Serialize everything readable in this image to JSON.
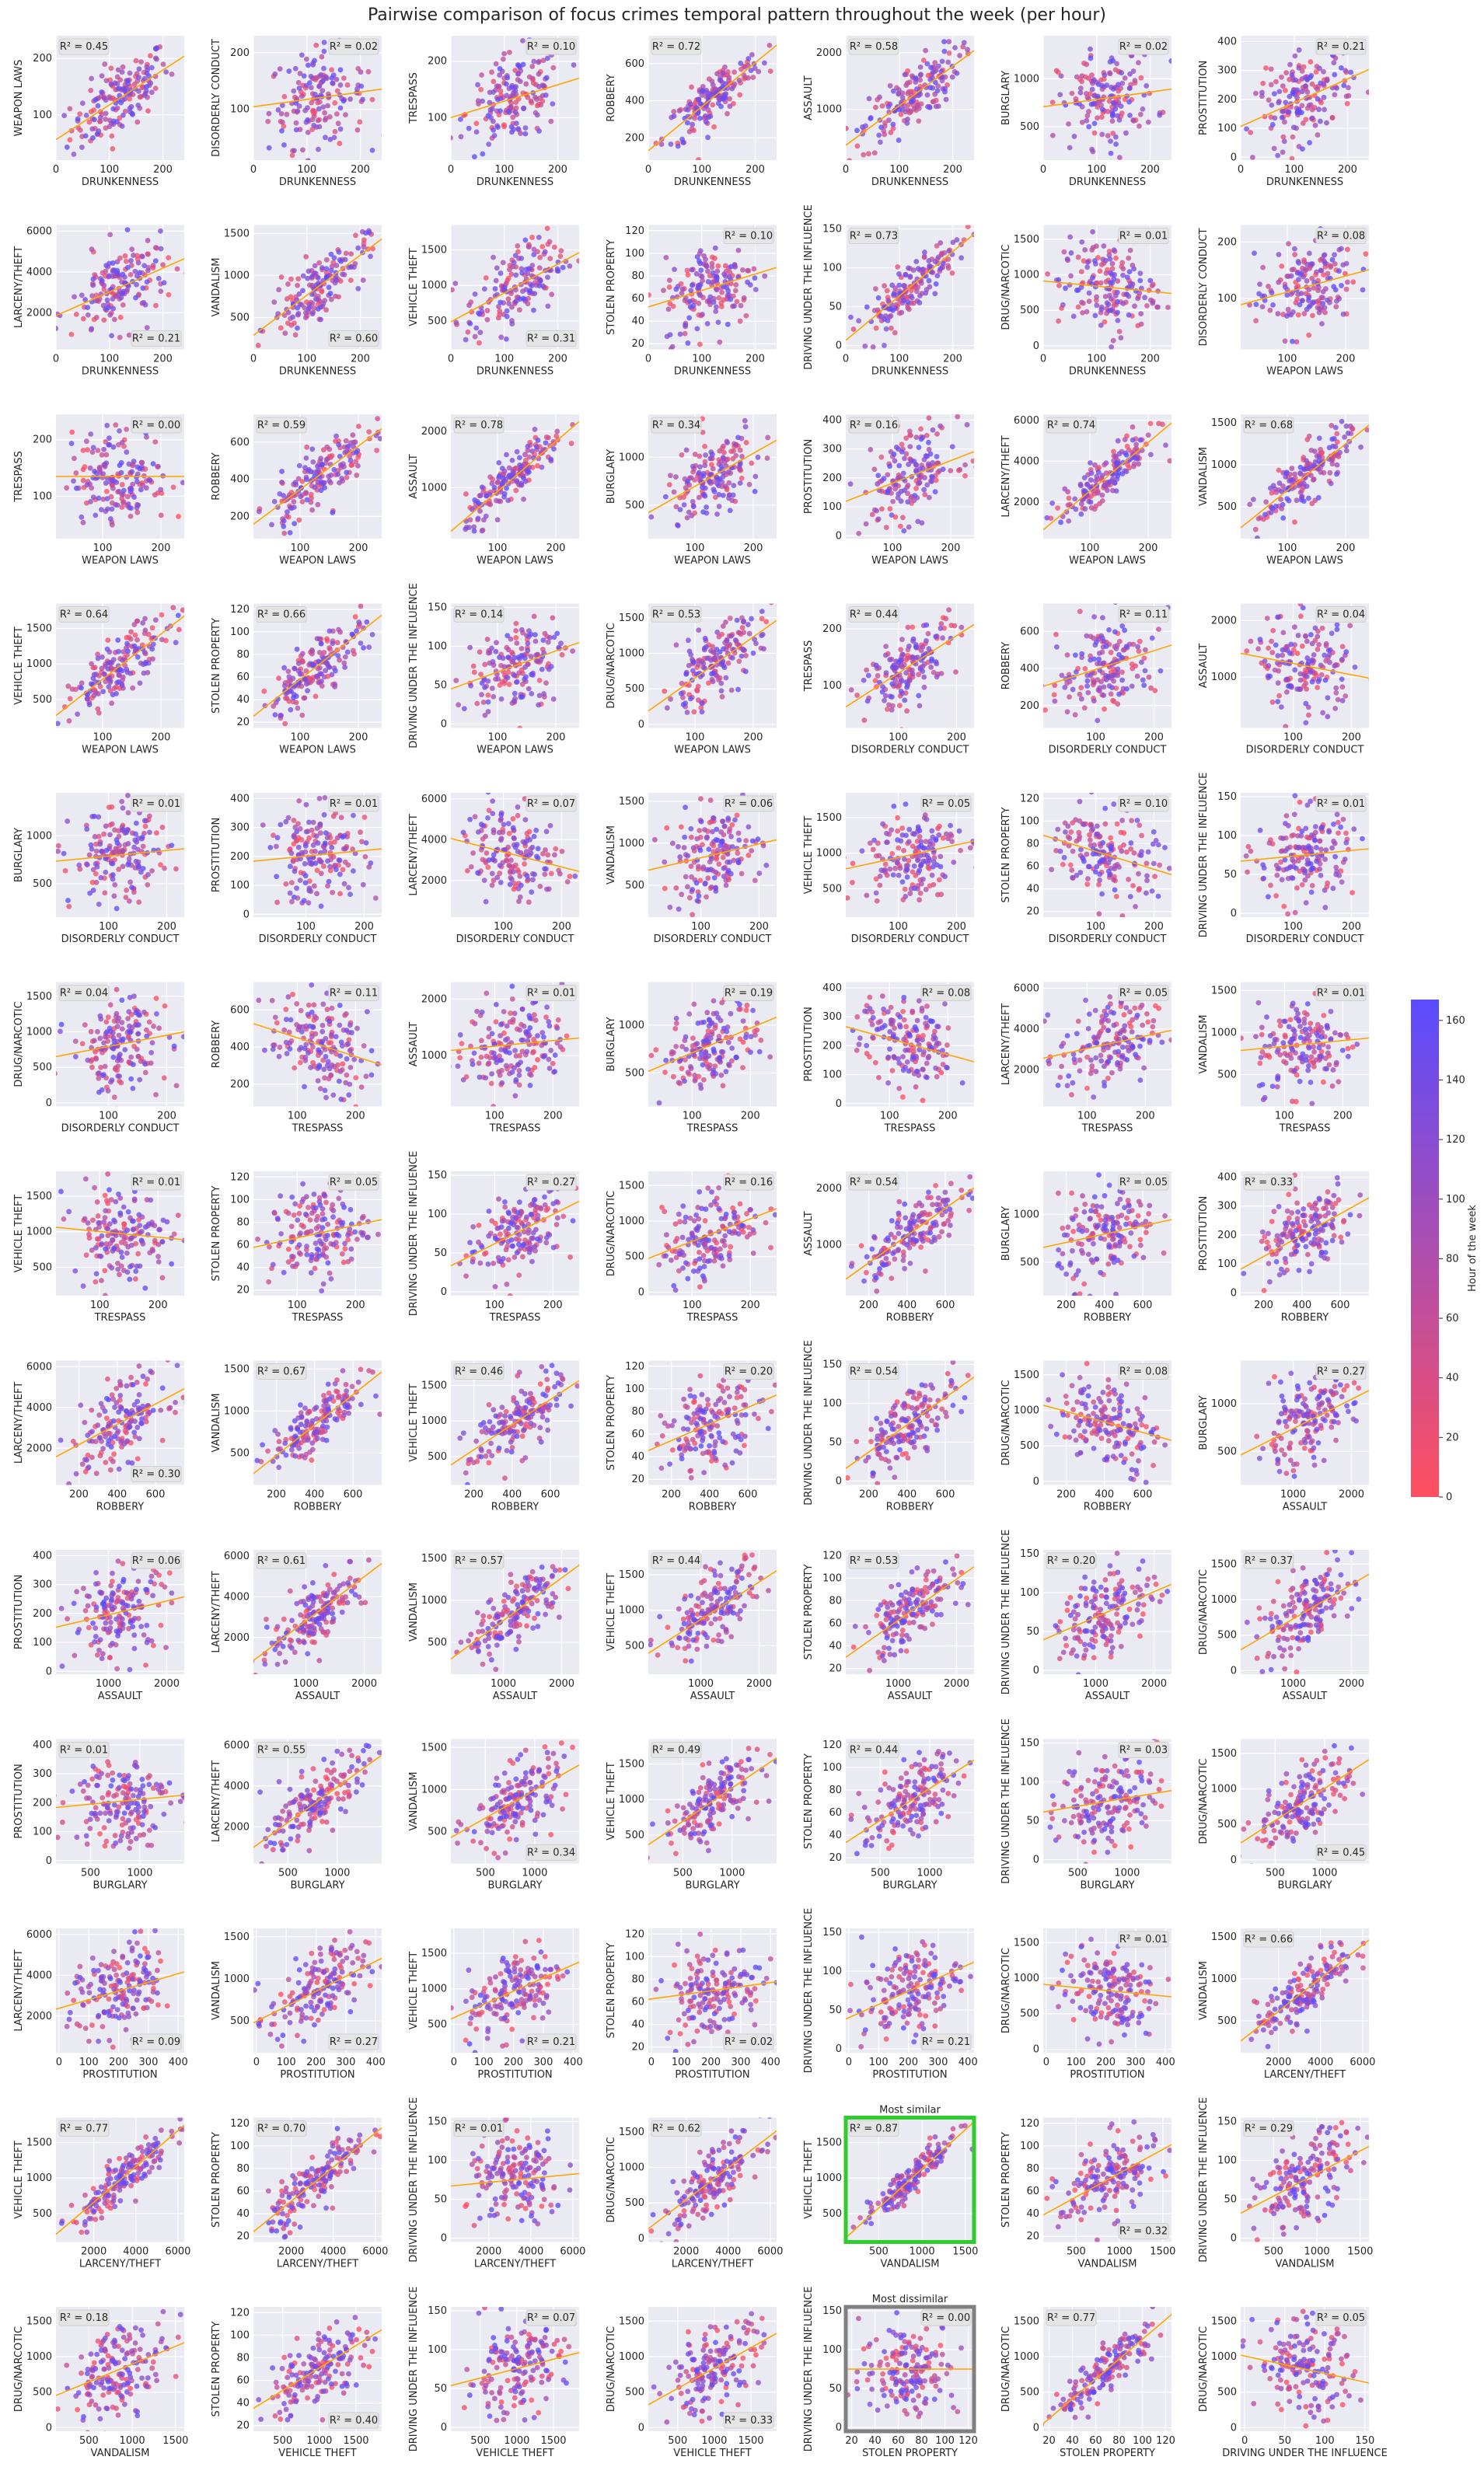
{
  "title": "Pairwise comparison of focus crimes temporal pattern throughout the week (per hour)",
  "colorbar": {
    "label": "Hour of the week",
    "ticks": [
      0,
      20,
      40,
      60,
      80,
      100,
      120,
      140,
      160
    ],
    "min": 0,
    "max": 167,
    "color_low": "#ff4f5f",
    "color_high": "#5a4cff"
  },
  "colors": {
    "panel_bg": "#eaeaf2",
    "grid": "#ffffff",
    "fit_line": "#ffa500",
    "most_similar_frame": "#2ecc2e",
    "most_dissimilar_frame": "#808080",
    "r2_box": "#e5e5e5"
  },
  "variables": {
    "DRUNKENNESS": {
      "lim": [
        0,
        240
      ],
      "ticks": [
        0,
        100,
        200
      ]
    },
    "WEAPON LAWS": {
      "lim": [
        20,
        240
      ],
      "ticks": [
        100,
        200
      ]
    },
    "DISORDERLY CONDUCT": {
      "lim": [
        10,
        230
      ],
      "ticks": [
        100,
        200
      ]
    },
    "TRESPASS": {
      "lim": [
        25,
        245
      ],
      "ticks": [
        100,
        200
      ]
    },
    "ROBBERY": {
      "lim": [
        80,
        750
      ],
      "ticks": [
        200,
        400,
        600
      ]
    },
    "ASSAULT": {
      "lim": [
        100,
        2300
      ],
      "ticks": [
        1000,
        2000
      ]
    },
    "BURGLARY": {
      "lim": [
        150,
        1450
      ],
      "ticks": [
        500,
        1000
      ]
    },
    "PROSTITUTION": {
      "lim": [
        -10,
        420
      ],
      "ticks": [
        0,
        100,
        200,
        300,
        400
      ]
    },
    "LARCENY/THEFT": {
      "lim": [
        200,
        6300
      ],
      "ticks": [
        2000,
        4000,
        6000
      ]
    },
    "VANDALISM": {
      "lim": [
        120,
        1600
      ],
      "ticks": [
        500,
        1000,
        1500
      ]
    },
    "VEHICLE THEFT": {
      "lim": [
        100,
        1850
      ],
      "ticks": [
        500,
        1000,
        1500
      ]
    },
    "STOLEN PROPERTY": {
      "lim": [
        15,
        125
      ],
      "ticks": [
        20,
        40,
        60,
        80,
        100,
        120
      ]
    },
    "DRIVING UNDER THE INFLUENCE": {
      "lim": [
        -5,
        155
      ],
      "ticks": [
        0,
        50,
        100,
        150
      ]
    },
    "DRUG/NARCOTIC": {
      "lim": [
        -50,
        1700
      ],
      "ticks": [
        0,
        500,
        1000,
        1500
      ]
    }
  },
  "panels": [
    {
      "x": "DRUNKENNESS",
      "y": "WEAPON LAWS",
      "r2": "R² = 0.45",
      "r2_pos": "top-left"
    },
    {
      "x": "DRUNKENNESS",
      "y": "DISORDERLY CONDUCT",
      "r2": "R² = 0.02",
      "r2_pos": "top-right"
    },
    {
      "x": "DRUNKENNESS",
      "y": "TRESPASS",
      "r2": "R² = 0.10",
      "r2_pos": "top-right"
    },
    {
      "x": "DRUNKENNESS",
      "y": "ROBBERY",
      "r2": "R² = 0.72",
      "r2_pos": "top-left"
    },
    {
      "x": "DRUNKENNESS",
      "y": "ASSAULT",
      "r2": "R² = 0.58",
      "r2_pos": "top-left"
    },
    {
      "x": "DRUNKENNESS",
      "y": "BURGLARY",
      "r2": "R² = 0.02",
      "r2_pos": "top-right"
    },
    {
      "x": "DRUNKENNESS",
      "y": "PROSTITUTION",
      "r2": "R² = 0.21",
      "r2_pos": "top-right"
    },
    {
      "x": "DRUNKENNESS",
      "y": "LARCENY/THEFT",
      "r2": "R² = 0.21",
      "r2_pos": "bottom-right"
    },
    {
      "x": "DRUNKENNESS",
      "y": "VANDALISM",
      "r2": "R² = 0.60",
      "r2_pos": "bottom-right"
    },
    {
      "x": "DRUNKENNESS",
      "y": "VEHICLE THEFT",
      "r2": "R² = 0.31",
      "r2_pos": "bottom-right"
    },
    {
      "x": "DRUNKENNESS",
      "y": "STOLEN PROPERTY",
      "r2": "R² = 0.10",
      "r2_pos": "top-right"
    },
    {
      "x": "DRUNKENNESS",
      "y": "DRIVING UNDER THE INFLUENCE",
      "r2": "R² = 0.73",
      "r2_pos": "top-left"
    },
    {
      "x": "DRUNKENNESS",
      "y": "DRUG/NARCOTIC",
      "r2": "R² = 0.01",
      "r2_pos": "top-right"
    },
    {
      "x": "WEAPON LAWS",
      "y": "DISORDERLY CONDUCT",
      "r2": "R² = 0.08",
      "r2_pos": "top-right"
    },
    {
      "x": "WEAPON LAWS",
      "y": "TRESPASS",
      "r2": "R² = 0.00",
      "r2_pos": "top-right"
    },
    {
      "x": "WEAPON LAWS",
      "y": "ROBBERY",
      "r2": "R² = 0.59",
      "r2_pos": "top-left"
    },
    {
      "x": "WEAPON LAWS",
      "y": "ASSAULT",
      "r2": "R² = 0.78",
      "r2_pos": "top-left"
    },
    {
      "x": "WEAPON LAWS",
      "y": "BURGLARY",
      "r2": "R² = 0.34",
      "r2_pos": "top-left"
    },
    {
      "x": "WEAPON LAWS",
      "y": "PROSTITUTION",
      "r2": "R² = 0.16",
      "r2_pos": "top-left"
    },
    {
      "x": "WEAPON LAWS",
      "y": "LARCENY/THEFT",
      "r2": "R² = 0.74",
      "r2_pos": "top-left"
    },
    {
      "x": "WEAPON LAWS",
      "y": "VANDALISM",
      "r2": "R² = 0.68",
      "r2_pos": "top-left"
    },
    {
      "x": "WEAPON LAWS",
      "y": "VEHICLE THEFT",
      "r2": "R² = 0.64",
      "r2_pos": "top-left"
    },
    {
      "x": "WEAPON LAWS",
      "y": "STOLEN PROPERTY",
      "r2": "R² = 0.66",
      "r2_pos": "top-left"
    },
    {
      "x": "WEAPON LAWS",
      "y": "DRIVING UNDER THE INFLUENCE",
      "r2": "R² = 0.14",
      "r2_pos": "top-left"
    },
    {
      "x": "WEAPON LAWS",
      "y": "DRUG/NARCOTIC",
      "r2": "R² = 0.53",
      "r2_pos": "top-left"
    },
    {
      "x": "DISORDERLY CONDUCT",
      "y": "TRESPASS",
      "r2": "R² = 0.44",
      "r2_pos": "top-left"
    },
    {
      "x": "DISORDERLY CONDUCT",
      "y": "ROBBERY",
      "r2": "R² = 0.11",
      "r2_pos": "top-right"
    },
    {
      "x": "DISORDERLY CONDUCT",
      "y": "ASSAULT",
      "r2": "R² = 0.04",
      "r2_pos": "top-right"
    },
    {
      "x": "DISORDERLY CONDUCT",
      "y": "BURGLARY",
      "r2": "R² = 0.01",
      "r2_pos": "top-right"
    },
    {
      "x": "DISORDERLY CONDUCT",
      "y": "PROSTITUTION",
      "r2": "R² = 0.01",
      "r2_pos": "top-right"
    },
    {
      "x": "DISORDERLY CONDUCT",
      "y": "LARCENY/THEFT",
      "r2": "R² = 0.07",
      "r2_pos": "top-right"
    },
    {
      "x": "DISORDERLY CONDUCT",
      "y": "VANDALISM",
      "r2": "R² = 0.06",
      "r2_pos": "top-right"
    },
    {
      "x": "DISORDERLY CONDUCT",
      "y": "VEHICLE THEFT",
      "r2": "R² = 0.05",
      "r2_pos": "top-right"
    },
    {
      "x": "DISORDERLY CONDUCT",
      "y": "STOLEN PROPERTY",
      "r2": "R² = 0.10",
      "r2_pos": "top-right"
    },
    {
      "x": "DISORDERLY CONDUCT",
      "y": "DRIVING UNDER THE INFLUENCE",
      "r2": "R² = 0.01",
      "r2_pos": "top-right"
    },
    {
      "x": "DISORDERLY CONDUCT",
      "y": "DRUG/NARCOTIC",
      "r2": "R² = 0.04",
      "r2_pos": "top-left"
    },
    {
      "x": "TRESPASS",
      "y": "ROBBERY",
      "r2": "R² = 0.11",
      "r2_pos": "top-right"
    },
    {
      "x": "TRESPASS",
      "y": "ASSAULT",
      "r2": "R² = 0.01",
      "r2_pos": "top-right"
    },
    {
      "x": "TRESPASS",
      "y": "BURGLARY",
      "r2": "R² = 0.19",
      "r2_pos": "top-right"
    },
    {
      "x": "TRESPASS",
      "y": "PROSTITUTION",
      "r2": "R² = 0.08",
      "r2_pos": "top-right"
    },
    {
      "x": "TRESPASS",
      "y": "LARCENY/THEFT",
      "r2": "R² = 0.05",
      "r2_pos": "top-right"
    },
    {
      "x": "TRESPASS",
      "y": "VANDALISM",
      "r2": "R² = 0.01",
      "r2_pos": "top-right"
    },
    {
      "x": "TRESPASS",
      "y": "VEHICLE THEFT",
      "r2": "R² = 0.01",
      "r2_pos": "top-right"
    },
    {
      "x": "TRESPASS",
      "y": "STOLEN PROPERTY",
      "r2": "R² = 0.05",
      "r2_pos": "top-right"
    },
    {
      "x": "TRESPASS",
      "y": "DRIVING UNDER THE INFLUENCE",
      "r2": "R² = 0.27",
      "r2_pos": "top-right"
    },
    {
      "x": "TRESPASS",
      "y": "DRUG/NARCOTIC",
      "r2": "R² = 0.16",
      "r2_pos": "top-right"
    },
    {
      "x": "ROBBERY",
      "y": "ASSAULT",
      "r2": "R² = 0.54",
      "r2_pos": "top-left"
    },
    {
      "x": "ROBBERY",
      "y": "BURGLARY",
      "r2": "R² = 0.05",
      "r2_pos": "top-right"
    },
    {
      "x": "ROBBERY",
      "y": "PROSTITUTION",
      "r2": "R² = 0.33",
      "r2_pos": "top-left"
    },
    {
      "x": "ROBBERY",
      "y": "LARCENY/THEFT",
      "r2": "R² = 0.30",
      "r2_pos": "bottom-right"
    },
    {
      "x": "ROBBERY",
      "y": "VANDALISM",
      "r2": "R² = 0.67",
      "r2_pos": "top-left"
    },
    {
      "x": "ROBBERY",
      "y": "VEHICLE THEFT",
      "r2": "R² = 0.46",
      "r2_pos": "top-left"
    },
    {
      "x": "ROBBERY",
      "y": "STOLEN PROPERTY",
      "r2": "R² = 0.20",
      "r2_pos": "top-right"
    },
    {
      "x": "ROBBERY",
      "y": "DRIVING UNDER THE INFLUENCE",
      "r2": "R² = 0.54",
      "r2_pos": "top-left"
    },
    {
      "x": "ROBBERY",
      "y": "DRUG/NARCOTIC",
      "r2": "R² = 0.08",
      "r2_pos": "top-right"
    },
    {
      "x": "ASSAULT",
      "y": "BURGLARY",
      "r2": "R² = 0.27",
      "r2_pos": "top-right"
    },
    {
      "x": "ASSAULT",
      "y": "PROSTITUTION",
      "r2": "R² = 0.06",
      "r2_pos": "top-right"
    },
    {
      "x": "ASSAULT",
      "y": "LARCENY/THEFT",
      "r2": "R² = 0.61",
      "r2_pos": "top-left"
    },
    {
      "x": "ASSAULT",
      "y": "VANDALISM",
      "r2": "R² = 0.57",
      "r2_pos": "top-left"
    },
    {
      "x": "ASSAULT",
      "y": "VEHICLE THEFT",
      "r2": "R² = 0.44",
      "r2_pos": "top-left"
    },
    {
      "x": "ASSAULT",
      "y": "STOLEN PROPERTY",
      "r2": "R² = 0.53",
      "r2_pos": "top-left"
    },
    {
      "x": "ASSAULT",
      "y": "DRIVING UNDER THE INFLUENCE",
      "r2": "R² = 0.20",
      "r2_pos": "top-left"
    },
    {
      "x": "ASSAULT",
      "y": "DRUG/NARCOTIC",
      "r2": "R² = 0.37",
      "r2_pos": "top-left"
    },
    {
      "x": "BURGLARY",
      "y": "PROSTITUTION",
      "r2": "R² = 0.01",
      "r2_pos": "top-left"
    },
    {
      "x": "BURGLARY",
      "y": "LARCENY/THEFT",
      "r2": "R² = 0.55",
      "r2_pos": "top-left"
    },
    {
      "x": "BURGLARY",
      "y": "VANDALISM",
      "r2": "R² = 0.34",
      "r2_pos": "bottom-right"
    },
    {
      "x": "BURGLARY",
      "y": "VEHICLE THEFT",
      "r2": "R² = 0.49",
      "r2_pos": "top-left"
    },
    {
      "x": "BURGLARY",
      "y": "STOLEN PROPERTY",
      "r2": "R² = 0.44",
      "r2_pos": "top-left"
    },
    {
      "x": "BURGLARY",
      "y": "DRIVING UNDER THE INFLUENCE",
      "r2": "R² = 0.03",
      "r2_pos": "top-right"
    },
    {
      "x": "BURGLARY",
      "y": "DRUG/NARCOTIC",
      "r2": "R² = 0.45",
      "r2_pos": "bottom-right"
    },
    {
      "x": "PROSTITUTION",
      "y": "LARCENY/THEFT",
      "r2": "R² = 0.09",
      "r2_pos": "bottom-right"
    },
    {
      "x": "PROSTITUTION",
      "y": "VANDALISM",
      "r2": "R² = 0.27",
      "r2_pos": "bottom-right"
    },
    {
      "x": "PROSTITUTION",
      "y": "VEHICLE THEFT",
      "r2": "R² = 0.21",
      "r2_pos": "bottom-right"
    },
    {
      "x": "PROSTITUTION",
      "y": "STOLEN PROPERTY",
      "r2": "R² = 0.02",
      "r2_pos": "bottom-right"
    },
    {
      "x": "PROSTITUTION",
      "y": "DRIVING UNDER THE INFLUENCE",
      "r2": "R² = 0.21",
      "r2_pos": "bottom-right"
    },
    {
      "x": "PROSTITUTION",
      "y": "DRUG/NARCOTIC",
      "r2": "R² = 0.01",
      "r2_pos": "top-right"
    },
    {
      "x": "LARCENY/THEFT",
      "y": "VANDALISM",
      "r2": "R² = 0.66",
      "r2_pos": "top-left"
    },
    {
      "x": "LARCENY/THEFT",
      "y": "VEHICLE THEFT",
      "r2": "R² = 0.77",
      "r2_pos": "top-left"
    },
    {
      "x": "LARCENY/THEFT",
      "y": "STOLEN PROPERTY",
      "r2": "R² = 0.70",
      "r2_pos": "top-left"
    },
    {
      "x": "LARCENY/THEFT",
      "y": "DRIVING UNDER THE INFLUENCE",
      "r2": "R² = 0.01",
      "r2_pos": "top-left"
    },
    {
      "x": "LARCENY/THEFT",
      "y": "DRUG/NARCOTIC",
      "r2": "R² = 0.62",
      "r2_pos": "top-left"
    },
    {
      "x": "VANDALISM",
      "y": "VEHICLE THEFT",
      "r2": "R² = 0.87",
      "r2_pos": "top-left",
      "highlight": "Most similar"
    },
    {
      "x": "VANDALISM",
      "y": "STOLEN PROPERTY",
      "r2": "R² = 0.32",
      "r2_pos": "bottom-right"
    },
    {
      "x": "VANDALISM",
      "y": "DRIVING UNDER THE INFLUENCE",
      "r2": "R² = 0.29",
      "r2_pos": "top-left"
    },
    {
      "x": "VANDALISM",
      "y": "DRUG/NARCOTIC",
      "r2": "R² = 0.18",
      "r2_pos": "top-left"
    },
    {
      "x": "VEHICLE THEFT",
      "y": "STOLEN PROPERTY",
      "r2": "R² = 0.40",
      "r2_pos": "bottom-right"
    },
    {
      "x": "VEHICLE THEFT",
      "y": "DRIVING UNDER THE INFLUENCE",
      "r2": "R² = 0.07",
      "r2_pos": "top-right"
    },
    {
      "x": "VEHICLE THEFT",
      "y": "DRUG/NARCOTIC",
      "r2": "R² = 0.33",
      "r2_pos": "bottom-right"
    },
    {
      "x": "STOLEN PROPERTY",
      "y": "DRIVING UNDER THE INFLUENCE",
      "r2": "R² = 0.00",
      "r2_pos": "top-right",
      "highlight": "Most dissimilar"
    },
    {
      "x": "STOLEN PROPERTY",
      "y": "DRUG/NARCOTIC",
      "r2": "R² = 0.77",
      "r2_pos": "top-left"
    },
    {
      "x": "DRIVING UNDER THE INFLUENCE",
      "y": "DRUG/NARCOTIC",
      "r2": "R² = 0.05",
      "r2_pos": "top-right"
    }
  ],
  "chart_data": {
    "type": "scatter",
    "title": "Pairwise comparison of focus crimes temporal pattern throughout the week (per hour)",
    "color_by": "Hour of the week",
    "points_per_panel": 168,
    "grid": true,
    "legend": "colorbar right",
    "grid_layout": {
      "rows": 13,
      "cols": 7
    }
  }
}
